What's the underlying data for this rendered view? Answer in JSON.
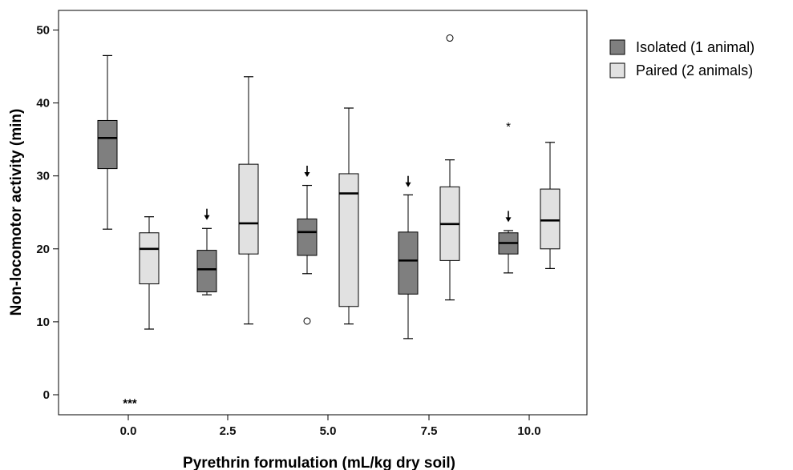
{
  "chart_data": {
    "type": "boxplot",
    "title": "",
    "xlabel": "Pyrethrin formulation (mL/kg dry soil)",
    "ylabel": "Non-locomotor activity (min)",
    "x_tick_labels": [
      "0.0",
      "2.5",
      "5.0",
      "7.5",
      "10.0"
    ],
    "y_ticks": [
      0,
      10,
      20,
      30,
      40,
      50
    ],
    "ylim": [
      -2.5,
      53
    ],
    "legend_position": "right",
    "series": [
      {
        "name": "Isolated (1 animal)",
        "color": "#7f7f7f"
      },
      {
        "name": "Paired (2 animals)",
        "color": "#e1e1e1"
      }
    ],
    "boxes": [
      {
        "series": "Isolated (1 animal)",
        "x": "0.0",
        "min": 22.7,
        "q1": 31.0,
        "median": 35.2,
        "q3": 37.6,
        "max": 46.5,
        "outliers": [],
        "extremes": []
      },
      {
        "series": "Paired (2 animals)",
        "x": "0.0",
        "min": 9.0,
        "q1": 15.2,
        "median": 20.0,
        "q3": 22.2,
        "max": 24.4,
        "outliers": [],
        "extremes": []
      },
      {
        "series": "Isolated (1 animal)",
        "x": "2.5",
        "min": 13.7,
        "q1": 14.1,
        "median": 17.2,
        "q3": 19.8,
        "max": 22.8,
        "outliers": [],
        "extremes": []
      },
      {
        "series": "Paired (2 animals)",
        "x": "2.5",
        "min": 9.7,
        "q1": 19.3,
        "median": 23.5,
        "q3": 31.6,
        "max": 43.6,
        "outliers": [],
        "extremes": []
      },
      {
        "series": "Isolated (1 animal)",
        "x": "5.0",
        "min": 16.6,
        "q1": 19.1,
        "median": 22.3,
        "q3": 24.1,
        "max": 28.7,
        "outliers": [
          10.1
        ],
        "extremes": []
      },
      {
        "series": "Paired (2 animals)",
        "x": "5.0",
        "min": 9.7,
        "q1": 12.1,
        "median": 27.6,
        "q3": 30.3,
        "max": 39.3,
        "outliers": [],
        "extremes": []
      },
      {
        "series": "Isolated (1 animal)",
        "x": "7.5",
        "min": 7.7,
        "q1": 13.8,
        "median": 18.4,
        "q3": 22.3,
        "max": 27.4,
        "outliers": [],
        "extremes": []
      },
      {
        "series": "Paired (2 animals)",
        "x": "7.5",
        "min": 13.0,
        "q1": 18.4,
        "median": 23.4,
        "q3": 28.5,
        "max": 32.2,
        "outliers": [
          48.9
        ],
        "extremes": []
      },
      {
        "series": "Isolated (1 animal)",
        "x": "10.0",
        "min": 16.7,
        "q1": 19.3,
        "median": 20.8,
        "q3": 22.2,
        "max": 22.5,
        "outliers": [],
        "extremes": [
          36.9
        ]
      },
      {
        "series": "Paired (2 animals)",
        "x": "10.0",
        "min": 17.3,
        "q1": 20.0,
        "median": 23.9,
        "q3": 28.2,
        "max": 34.6,
        "outliers": [],
        "extremes": []
      }
    ],
    "annotations": [
      {
        "type": "text",
        "text": "***",
        "x": "0.0",
        "y": -0.8
      },
      {
        "type": "arrow",
        "x": "2.5",
        "series": "Isolated (1 animal)",
        "y": 25.5
      },
      {
        "type": "arrow",
        "x": "5.0",
        "series": "Isolated (1 animal)",
        "y": 31.4
      },
      {
        "type": "arrow",
        "x": "7.5",
        "series": "Isolated (1 animal)",
        "y": 30.0
      },
      {
        "type": "arrow",
        "x": "10.0",
        "series": "Isolated (1 animal)",
        "y": 25.2
      }
    ]
  }
}
